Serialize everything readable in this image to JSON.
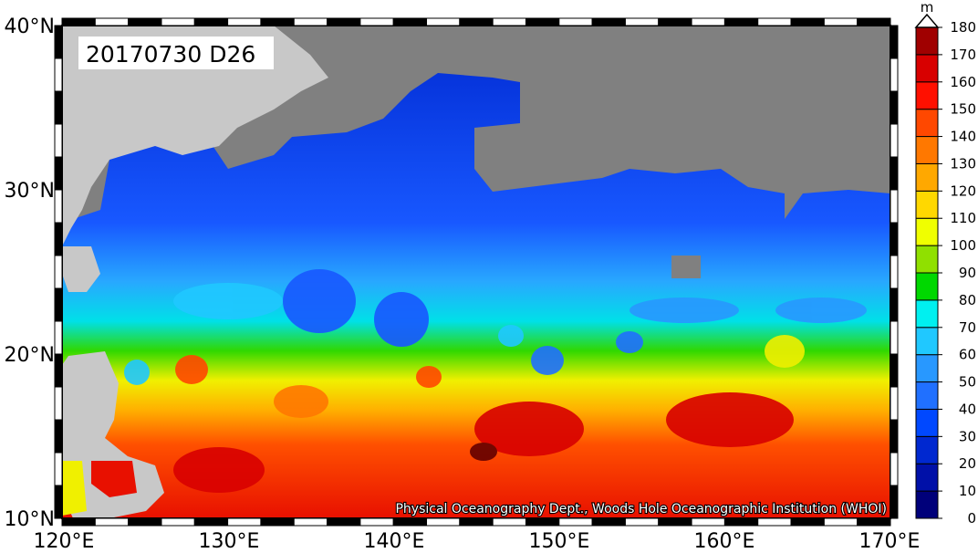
{
  "map": {
    "date_label": "20170730 D26",
    "credit": "Physical Oceanography Dept., Woods Hole Oceanographic Institution (WHOI)",
    "lat_labels": [
      "40°N",
      "30°N",
      "20°N",
      "10°N"
    ],
    "lon_labels": [
      "120°E",
      "130°E",
      "140°E",
      "150°E",
      "160°E",
      "170°E"
    ],
    "land_color": "#808080",
    "coast_land_color": "#c8c8c8"
  },
  "colorbar": {
    "unit": "m",
    "ticks": [
      "0",
      "10",
      "20",
      "30",
      "40",
      "50",
      "60",
      "70",
      "80",
      "90",
      "100",
      "110",
      "120",
      "130",
      "140",
      "150",
      "160",
      "170",
      "180"
    ],
    "colors": [
      "#00007a",
      "#0010a8",
      "#0028d0",
      "#0048ff",
      "#2070ff",
      "#2898ff",
      "#20c8ff",
      "#00f0f0",
      "#00d800",
      "#90e000",
      "#f0ff00",
      "#ffd800",
      "#ffa800",
      "#ff7800",
      "#ff4800",
      "#ff1000",
      "#d80000",
      "#a00000",
      "#640000"
    ]
  }
}
